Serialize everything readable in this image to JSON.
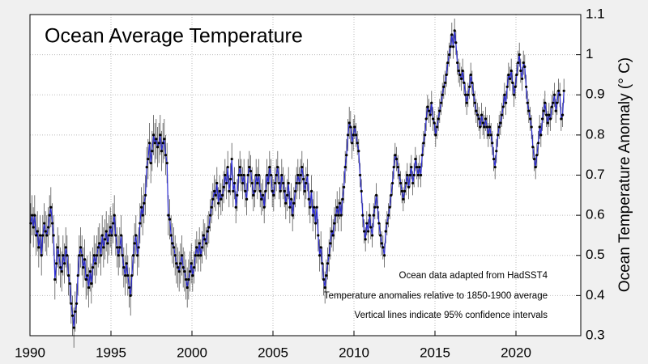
{
  "chart_data": {
    "type": "line",
    "title": "Ocean Average Temperature",
    "ylabel": "Ocean Temperature Anomaly (° C)",
    "annotations": [
      "Ocean data adapted from HadSST4",
      "Temperature anomalies relative to 1850-1900 average",
      "Vertical lines indicate 95% confidence intervals"
    ],
    "xlim": [
      1990,
      2024
    ],
    "xticks": [
      1990,
      1995,
      2000,
      2005,
      2010,
      2015,
      2020
    ],
    "ylim": [
      0.3,
      1.1
    ],
    "yticks": [
      0.3,
      0.4,
      0.5,
      0.6,
      0.7,
      0.8,
      0.9,
      1,
      1.1
    ],
    "grid": true,
    "yaxis_side": "right",
    "marker_color": "#000000",
    "error_color": "#555555",
    "x": [
      1990.04,
      1990.13,
      1990.21,
      1990.29,
      1990.38,
      1990.46,
      1990.54,
      1990.63,
      1990.71,
      1990.79,
      1990.88,
      1990.96,
      1991.04,
      1991.13,
      1991.21,
      1991.29,
      1991.38,
      1991.46,
      1991.54,
      1991.63,
      1991.71,
      1991.79,
      1991.88,
      1991.96,
      1992.04,
      1992.13,
      1992.21,
      1992.29,
      1992.38,
      1992.46,
      1992.54,
      1992.63,
      1992.71,
      1992.79,
      1992.88,
      1992.96,
      1993.04,
      1993.13,
      1993.21,
      1993.29,
      1993.38,
      1993.46,
      1993.54,
      1993.63,
      1993.71,
      1993.79,
      1993.88,
      1993.96,
      1994.04,
      1994.13,
      1994.21,
      1994.29,
      1994.38,
      1994.46,
      1994.54,
      1994.63,
      1994.71,
      1994.79,
      1994.88,
      1994.96,
      1995.04,
      1995.13,
      1995.21,
      1995.29,
      1995.38,
      1995.46,
      1995.54,
      1995.63,
      1995.71,
      1995.79,
      1995.88,
      1995.96,
      1996.04,
      1996.13,
      1996.21,
      1996.29,
      1996.38,
      1996.46,
      1996.54,
      1996.63,
      1996.71,
      1996.79,
      1996.88,
      1996.96,
      1997.04,
      1997.13,
      1997.21,
      1997.29,
      1997.38,
      1997.46,
      1997.54,
      1997.63,
      1997.71,
      1997.79,
      1997.88,
      1997.96,
      1998.04,
      1998.13,
      1998.21,
      1998.29,
      1998.38,
      1998.46,
      1998.54,
      1998.63,
      1998.71,
      1998.79,
      1998.88,
      1998.96,
      1999.04,
      1999.13,
      1999.21,
      1999.29,
      1999.38,
      1999.46,
      1999.54,
      1999.63,
      1999.71,
      1999.79,
      1999.88,
      1999.96,
      2000.04,
      2000.13,
      2000.21,
      2000.29,
      2000.38,
      2000.46,
      2000.54,
      2000.63,
      2000.71,
      2000.79,
      2000.88,
      2000.96,
      2001.04,
      2001.13,
      2001.21,
      2001.29,
      2001.38,
      2001.46,
      2001.54,
      2001.63,
      2001.71,
      2001.79,
      2001.88,
      2001.96,
      2002.04,
      2002.13,
      2002.21,
      2002.29,
      2002.38,
      2002.46,
      2002.54,
      2002.63,
      2002.71,
      2002.79,
      2002.88,
      2002.96,
      2003.04,
      2003.13,
      2003.21,
      2003.29,
      2003.38,
      2003.46,
      2003.54,
      2003.63,
      2003.71,
      2003.79,
      2003.88,
      2003.96,
      2004.04,
      2004.13,
      2004.21,
      2004.29,
      2004.38,
      2004.46,
      2004.54,
      2004.63,
      2004.71,
      2004.79,
      2004.88,
      2004.96,
      2005.04,
      2005.13,
      2005.21,
      2005.29,
      2005.38,
      2005.46,
      2005.54,
      2005.63,
      2005.71,
      2005.79,
      2005.88,
      2005.96,
      2006.04,
      2006.13,
      2006.21,
      2006.29,
      2006.38,
      2006.46,
      2006.54,
      2006.63,
      2006.71,
      2006.79,
      2006.88,
      2006.96,
      2007.04,
      2007.13,
      2007.21,
      2007.29,
      2007.38,
      2007.46,
      2007.54,
      2007.63,
      2007.71,
      2007.79,
      2007.88,
      2007.96,
      2008.04,
      2008.13,
      2008.21,
      2008.29,
      2008.38,
      2008.46,
      2008.54,
      2008.63,
      2008.71,
      2008.79,
      2008.88,
      2008.96,
      2009.04,
      2009.13,
      2009.21,
      2009.29,
      2009.38,
      2009.46,
      2009.54,
      2009.63,
      2009.71,
      2009.79,
      2009.88,
      2009.96,
      2010.04,
      2010.13,
      2010.21,
      2010.29,
      2010.38,
      2010.46,
      2010.54,
      2010.63,
      2010.71,
      2010.79,
      2010.88,
      2010.96,
      2011.04,
      2011.13,
      2011.21,
      2011.29,
      2011.38,
      2011.46,
      2011.54,
      2011.63,
      2011.71,
      2011.79,
      2011.88,
      2011.96,
      2012.04,
      2012.13,
      2012.21,
      2012.29,
      2012.38,
      2012.46,
      2012.54,
      2012.63,
      2012.71,
      2012.79,
      2012.88,
      2012.96,
      2013.04,
      2013.13,
      2013.21,
      2013.29,
      2013.38,
      2013.46,
      2013.54,
      2013.63,
      2013.71,
      2013.79,
      2013.88,
      2013.96,
      2014.04,
      2014.13,
      2014.21,
      2014.29,
      2014.38,
      2014.46,
      2014.54,
      2014.63,
      2014.71,
      2014.79,
      2014.88,
      2014.96,
      2015.04,
      2015.13,
      2015.21,
      2015.29,
      2015.38,
      2015.46,
      2015.54,
      2015.63,
      2015.71,
      2015.79,
      2015.88,
      2015.96,
      2016.04,
      2016.13,
      2016.21,
      2016.29,
      2016.38,
      2016.46,
      2016.54,
      2016.63,
      2016.71,
      2016.79,
      2016.88,
      2016.96,
      2017.04,
      2017.13,
      2017.21,
      2017.29,
      2017.38,
      2017.46,
      2017.54,
      2017.63,
      2017.71,
      2017.79,
      2017.88,
      2017.96,
      2018.04,
      2018.13,
      2018.21,
      2018.29,
      2018.38,
      2018.46,
      2018.54,
      2018.63,
      2018.71,
      2018.79,
      2018.88,
      2018.96,
      2019.04,
      2019.13,
      2019.21,
      2019.29,
      2019.38,
      2019.46,
      2019.54,
      2019.63,
      2019.71,
      2019.79,
      2019.88,
      2019.96,
      2020.04,
      2020.13,
      2020.21,
      2020.29,
      2020.38,
      2020.46,
      2020.54,
      2020.63,
      2020.71,
      2020.79,
      2020.88,
      2020.96,
      2021.04,
      2021.13,
      2021.21,
      2021.29,
      2021.38,
      2021.46,
      2021.54,
      2021.63,
      2021.71,
      2021.79,
      2021.88,
      2021.96,
      2022.04,
      2022.13,
      2022.21,
      2022.29,
      2022.38,
      2022.46,
      2022.54,
      2022.63,
      2022.71,
      2022.79,
      2022.88,
      2022.96
    ],
    "series": [
      {
        "color": "#2b2bd0",
        "values": [
          0.58,
          0.6,
          0.57,
          0.6,
          0.55,
          0.56,
          0.52,
          0.55,
          0.5,
          0.55,
          0.58,
          0.56,
          0.55,
          0.57,
          0.6,
          0.62,
          0.58,
          0.55,
          0.44,
          0.48,
          0.52,
          0.5,
          0.47,
          0.46,
          0.5,
          0.48,
          0.52,
          0.5,
          0.45,
          0.43,
          0.38,
          0.35,
          0.32,
          0.36,
          0.38,
          0.45,
          0.5,
          0.52,
          0.5,
          0.47,
          0.49,
          0.44,
          0.45,
          0.42,
          0.46,
          0.43,
          0.47,
          0.5,
          0.48,
          0.5,
          0.52,
          0.53,
          0.5,
          0.55,
          0.52,
          0.54,
          0.56,
          0.53,
          0.55,
          0.57,
          0.55,
          0.58,
          0.6,
          0.55,
          0.52,
          0.5,
          0.52,
          0.55,
          0.5,
          0.47,
          0.45,
          0.48,
          0.45,
          0.42,
          0.4,
          0.45,
          0.5,
          0.53,
          0.55,
          0.5,
          0.52,
          0.58,
          0.62,
          0.6,
          0.63,
          0.65,
          0.72,
          0.74,
          0.78,
          0.73,
          0.76,
          0.8,
          0.78,
          0.79,
          0.77,
          0.78,
          0.8,
          0.76,
          0.78,
          0.79,
          0.75,
          0.73,
          0.6,
          0.59,
          0.55,
          0.53,
          0.52,
          0.5,
          0.48,
          0.47,
          0.46,
          0.48,
          0.5,
          0.47,
          0.46,
          0.44,
          0.42,
          0.44,
          0.46,
          0.48,
          0.45,
          0.47,
          0.5,
          0.52,
          0.5,
          0.53,
          0.5,
          0.52,
          0.55,
          0.54,
          0.53,
          0.56,
          0.57,
          0.6,
          0.62,
          0.64,
          0.66,
          0.65,
          0.68,
          0.63,
          0.66,
          0.64,
          0.65,
          0.67,
          0.7,
          0.68,
          0.72,
          0.66,
          0.69,
          0.74,
          0.66,
          0.68,
          0.62,
          0.65,
          0.7,
          0.72,
          0.7,
          0.68,
          0.7,
          0.66,
          0.64,
          0.7,
          0.72,
          0.71,
          0.68,
          0.65,
          0.66,
          0.7,
          0.68,
          0.7,
          0.66,
          0.64,
          0.65,
          0.62,
          0.66,
          0.7,
          0.68,
          0.72,
          0.7,
          0.66,
          0.65,
          0.68,
          0.7,
          0.72,
          0.68,
          0.66,
          0.7,
          0.68,
          0.66,
          0.63,
          0.65,
          0.68,
          0.62,
          0.64,
          0.6,
          0.63,
          0.66,
          0.68,
          0.7,
          0.68,
          0.7,
          0.72,
          0.69,
          0.66,
          0.68,
          0.7,
          0.64,
          0.62,
          0.66,
          0.6,
          0.62,
          0.58,
          0.62,
          0.55,
          0.5,
          0.52,
          0.48,
          0.44,
          0.42,
          0.45,
          0.48,
          0.5,
          0.53,
          0.56,
          0.55,
          0.58,
          0.6,
          0.62,
          0.6,
          0.63,
          0.6,
          0.64,
          0.67,
          0.72,
          0.75,
          0.8,
          0.83,
          0.82,
          0.78,
          0.8,
          0.82,
          0.8,
          0.78,
          0.76,
          0.7,
          0.66,
          0.6,
          0.56,
          0.54,
          0.58,
          0.56,
          0.6,
          0.57,
          0.55,
          0.6,
          0.62,
          0.65,
          0.62,
          0.58,
          0.55,
          0.53,
          0.52,
          0.5,
          0.56,
          0.58,
          0.6,
          0.62,
          0.65,
          0.68,
          0.72,
          0.75,
          0.74,
          0.72,
          0.7,
          0.68,
          0.66,
          0.64,
          0.66,
          0.68,
          0.7,
          0.67,
          0.7,
          0.72,
          0.68,
          0.7,
          0.74,
          0.72,
          0.7,
          0.72,
          0.7,
          0.75,
          0.78,
          0.8,
          0.84,
          0.87,
          0.86,
          0.85,
          0.88,
          0.84,
          0.83,
          0.8,
          0.82,
          0.84,
          0.86,
          0.88,
          0.9,
          0.92,
          0.93,
          0.95,
          0.98,
          1.0,
          1.02,
          1.05,
          1.02,
          1.06,
          1.03,
          0.98,
          0.96,
          0.95,
          0.94,
          0.96,
          0.93,
          0.9,
          0.88,
          0.9,
          0.92,
          0.95,
          0.93,
          0.9,
          0.88,
          0.86,
          0.85,
          0.84,
          0.82,
          0.85,
          0.83,
          0.82,
          0.84,
          0.82,
          0.8,
          0.82,
          0.8,
          0.78,
          0.74,
          0.72,
          0.76,
          0.8,
          0.82,
          0.83,
          0.85,
          0.87,
          0.9,
          0.88,
          0.92,
          0.95,
          0.94,
          0.96,
          0.93,
          0.9,
          0.92,
          0.95,
          0.98,
          1.0,
          0.96,
          0.94,
          0.98,
          0.97,
          0.92,
          0.88,
          0.86,
          0.84,
          0.82,
          0.77,
          0.74,
          0.72,
          0.75,
          0.78,
          0.82,
          0.8,
          0.84,
          0.86,
          0.88,
          0.85,
          0.83,
          0.85,
          0.84,
          0.87,
          0.88,
          0.9,
          0.86,
          0.88,
          0.91,
          0.9,
          0.84,
          0.85,
          0.91
        ],
        "errors": [
          0.05,
          0.05,
          0.05,
          0.05,
          0.05,
          0.05,
          0.05,
          0.05,
          0.05,
          0.05,
          0.05,
          0.05,
          0.05,
          0.05,
          0.05,
          0.05,
          0.05,
          0.05,
          0.05,
          0.05,
          0.05,
          0.05,
          0.05,
          0.05,
          0.05,
          0.05,
          0.05,
          0.05,
          0.05,
          0.05,
          0.05,
          0.05,
          0.05,
          0.05,
          0.05,
          0.05,
          0.05,
          0.05,
          0.05,
          0.05,
          0.05,
          0.05,
          0.05,
          0.05,
          0.05,
          0.05,
          0.05,
          0.05,
          0.05,
          0.05,
          0.05,
          0.05,
          0.05,
          0.05,
          0.05,
          0.05,
          0.05,
          0.05,
          0.05,
          0.05,
          0.05,
          0.05,
          0.05,
          0.05,
          0.05,
          0.05,
          0.05,
          0.05,
          0.05,
          0.05,
          0.05,
          0.05,
          0.05,
          0.05,
          0.05,
          0.05,
          0.05,
          0.05,
          0.05,
          0.05,
          0.05,
          0.05,
          0.05,
          0.05,
          0.05,
          0.05,
          0.05,
          0.05,
          0.05,
          0.05,
          0.05,
          0.05,
          0.05,
          0.05,
          0.05,
          0.05,
          0.05,
          0.05,
          0.05,
          0.05,
          0.05,
          0.05,
          0.05,
          0.05,
          0.05,
          0.05,
          0.05,
          0.05,
          0.05,
          0.05,
          0.05,
          0.05,
          0.05,
          0.05,
          0.05,
          0.05,
          0.05,
          0.05,
          0.05,
          0.05,
          0.04,
          0.04,
          0.04,
          0.04,
          0.04,
          0.04,
          0.04,
          0.04,
          0.04,
          0.04,
          0.04,
          0.04,
          0.04,
          0.04,
          0.04,
          0.04,
          0.04,
          0.04,
          0.04,
          0.04,
          0.04,
          0.04,
          0.04,
          0.04,
          0.04,
          0.04,
          0.04,
          0.04,
          0.04,
          0.04,
          0.04,
          0.04,
          0.04,
          0.04,
          0.04,
          0.04,
          0.04,
          0.04,
          0.04,
          0.04,
          0.04,
          0.04,
          0.04,
          0.04,
          0.04,
          0.04,
          0.04,
          0.04,
          0.04,
          0.04,
          0.04,
          0.04,
          0.04,
          0.04,
          0.04,
          0.04,
          0.04,
          0.04,
          0.04,
          0.04,
          0.04,
          0.04,
          0.04,
          0.04,
          0.04,
          0.04,
          0.04,
          0.04,
          0.04,
          0.04,
          0.04,
          0.04,
          0.04,
          0.04,
          0.04,
          0.04,
          0.04,
          0.04,
          0.04,
          0.04,
          0.04,
          0.04,
          0.04,
          0.04,
          0.04,
          0.04,
          0.04,
          0.04,
          0.04,
          0.04,
          0.04,
          0.04,
          0.04,
          0.04,
          0.04,
          0.04,
          0.04,
          0.04,
          0.04,
          0.04,
          0.04,
          0.04,
          0.04,
          0.04,
          0.04,
          0.04,
          0.04,
          0.04,
          0.04,
          0.04,
          0.04,
          0.04,
          0.04,
          0.04,
          0.04,
          0.04,
          0.04,
          0.04,
          0.04,
          0.04,
          0.03,
          0.03,
          0.03,
          0.03,
          0.03,
          0.03,
          0.03,
          0.03,
          0.03,
          0.03,
          0.03,
          0.03,
          0.03,
          0.03,
          0.03,
          0.03,
          0.03,
          0.03,
          0.03,
          0.03,
          0.03,
          0.03,
          0.03,
          0.03,
          0.03,
          0.03,
          0.03,
          0.03,
          0.03,
          0.03,
          0.03,
          0.03,
          0.03,
          0.03,
          0.03,
          0.03,
          0.03,
          0.03,
          0.03,
          0.03,
          0.03,
          0.03,
          0.03,
          0.03,
          0.03,
          0.03,
          0.03,
          0.03,
          0.03,
          0.03,
          0.03,
          0.03,
          0.03,
          0.03,
          0.03,
          0.03,
          0.03,
          0.03,
          0.03,
          0.03,
          0.03,
          0.03,
          0.03,
          0.03,
          0.03,
          0.03,
          0.03,
          0.03,
          0.03,
          0.03,
          0.03,
          0.03,
          0.03,
          0.03,
          0.03,
          0.03,
          0.03,
          0.03,
          0.03,
          0.03,
          0.03,
          0.03,
          0.03,
          0.03,
          0.03,
          0.03,
          0.03,
          0.03,
          0.03,
          0.03,
          0.03,
          0.03,
          0.03,
          0.03,
          0.03,
          0.03,
          0.03,
          0.03,
          0.03,
          0.03,
          0.03,
          0.03,
          0.03,
          0.03,
          0.03,
          0.03,
          0.03,
          0.03,
          0.03,
          0.03,
          0.03,
          0.03,
          0.03,
          0.03,
          0.03,
          0.03,
          0.03,
          0.03,
          0.03,
          0.03,
          0.03,
          0.03,
          0.03,
          0.03,
          0.03,
          0.03,
          0.03,
          0.03,
          0.03,
          0.03,
          0.03,
          0.03,
          0.03,
          0.03,
          0.03,
          0.03,
          0.03,
          0.03,
          0.03,
          0.03,
          0.03,
          0.03,
          0.03,
          0.03,
          0.03,
          0.03,
          0.03,
          0.03,
          0.03,
          0.03,
          0.03,
          0.03,
          0.03,
          0.03,
          0.03,
          0.03
        ]
      }
    ]
  }
}
